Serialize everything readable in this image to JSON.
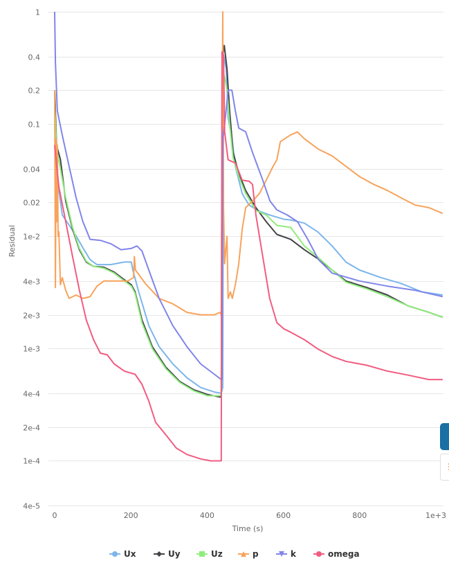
{
  "chart_data": {
    "type": "line",
    "title": "",
    "xlabel": "Time (s)",
    "ylabel": "Residual",
    "xlim": [
      0,
      1000
    ],
    "ylim": [
      4e-05,
      1
    ],
    "yscale": "log",
    "grid": true,
    "legend_position": "bottom",
    "x_ticks": [
      {
        "value": 0,
        "label": "0"
      },
      {
        "value": 200,
        "label": "200"
      },
      {
        "value": 400,
        "label": "400"
      },
      {
        "value": 600,
        "label": "600"
      },
      {
        "value": 800,
        "label": "800"
      },
      {
        "value": 1000,
        "label": "1e+3"
      }
    ],
    "y_ticks": [
      {
        "value": 1,
        "label": "1"
      },
      {
        "value": 0.4,
        "label": "0.4"
      },
      {
        "value": 0.2,
        "label": "0.2"
      },
      {
        "value": 0.1,
        "label": "0.1"
      },
      {
        "value": 0.04,
        "label": "0.04"
      },
      {
        "value": 0.02,
        "label": "0.02"
      },
      {
        "value": 0.01,
        "label": "1e-2"
      },
      {
        "value": 0.004,
        "label": "4e-3"
      },
      {
        "value": 0.002,
        "label": "2e-3"
      },
      {
        "value": 0.001,
        "label": "1e-3"
      },
      {
        "value": 0.0004,
        "label": "4e-4"
      },
      {
        "value": 0.0002,
        "label": "2e-4"
      },
      {
        "value": 0.0001,
        "label": "1e-4"
      },
      {
        "value": 4e-05,
        "label": "4e-5"
      }
    ],
    "series": [
      {
        "name": "Ux",
        "color": "#7cb5ec",
        "marker": "circle",
        "points": [
          [
            0,
            0.2
          ],
          [
            5,
            0.0365
          ],
          [
            20,
            0.0155
          ],
          [
            38,
            0.0126
          ],
          [
            56,
            0.0101
          ],
          [
            74,
            0.0079
          ],
          [
            93,
            0.0062
          ],
          [
            111,
            0.0056
          ],
          [
            147,
            0.0056
          ],
          [
            183,
            0.0059
          ],
          [
            201,
            0.0059
          ],
          [
            205,
            0.005
          ],
          [
            220,
            0.00325
          ],
          [
            247,
            0.0016
          ],
          [
            274,
            0.00104
          ],
          [
            310,
            0.00073
          ],
          [
            347,
            0.00055
          ],
          [
            383,
            0.00045
          ],
          [
            419,
            0.00041
          ],
          [
            437,
            0.0004
          ],
          [
            441,
            0.00045
          ],
          [
            443,
            0.41
          ],
          [
            450,
            0.31
          ],
          [
            455,
            0.114
          ],
          [
            465,
            0.074
          ],
          [
            474,
            0.042
          ],
          [
            492,
            0.024
          ],
          [
            510,
            0.019
          ],
          [
            537,
            0.0167
          ],
          [
            564,
            0.0155
          ],
          [
            601,
            0.0142
          ],
          [
            619,
            0.014
          ],
          [
            655,
            0.0131
          ],
          [
            691,
            0.0109
          ],
          [
            728,
            0.0082
          ],
          [
            764,
            0.0059
          ],
          [
            800,
            0.005
          ],
          [
            855,
            0.0043
          ],
          [
            909,
            0.0038
          ],
          [
            964,
            0.0032
          ],
          [
            1018,
            0.003
          ]
        ]
      },
      {
        "name": "Uy",
        "color": "#434348",
        "marker": "diamond",
        "points": [
          [
            0,
            0.2
          ],
          [
            5,
            0.0645
          ],
          [
            15,
            0.0485
          ],
          [
            29,
            0.0206
          ],
          [
            47,
            0.0116
          ],
          [
            65,
            0.0076
          ],
          [
            83,
            0.0059
          ],
          [
            102,
            0.0054
          ],
          [
            129,
            0.0053
          ],
          [
            156,
            0.0048
          ],
          [
            183,
            0.0041
          ],
          [
            201,
            0.0037
          ],
          [
            211,
            0.0032
          ],
          [
            229,
            0.0018
          ],
          [
            256,
            0.00104
          ],
          [
            292,
            0.00068
          ],
          [
            328,
            0.00051
          ],
          [
            365,
            0.00043
          ],
          [
            401,
            0.00039
          ],
          [
            434,
            0.00037
          ],
          [
            437,
            0.00039
          ],
          [
            441,
            0.41
          ],
          [
            445,
            0.5
          ],
          [
            452,
            0.31
          ],
          [
            459,
            0.131
          ],
          [
            468,
            0.056
          ],
          [
            483,
            0.0365
          ],
          [
            501,
            0.0256
          ],
          [
            528,
            0.018
          ],
          [
            555,
            0.0135
          ],
          [
            583,
            0.0104
          ],
          [
            619,
            0.0094
          ],
          [
            655,
            0.0076
          ],
          [
            691,
            0.0063
          ],
          [
            728,
            0.005
          ],
          [
            764,
            0.004
          ],
          [
            819,
            0.0035
          ],
          [
            873,
            0.003
          ],
          [
            927,
            0.0024
          ],
          [
            982,
            0.0021
          ],
          [
            1018,
            0.0019
          ]
        ]
      },
      {
        "name": "Uz",
        "color": "#90ed7d",
        "marker": "square",
        "points": [
          [
            0,
            0.15
          ],
          [
            5,
            0.06
          ],
          [
            15,
            0.04
          ],
          [
            29,
            0.022
          ],
          [
            47,
            0.012
          ],
          [
            65,
            0.0078
          ],
          [
            83,
            0.006
          ],
          [
            102,
            0.0054
          ],
          [
            129,
            0.0052
          ],
          [
            156,
            0.0047
          ],
          [
            183,
            0.004
          ],
          [
            201,
            0.0036
          ],
          [
            211,
            0.0031
          ],
          [
            229,
            0.0017
          ],
          [
            256,
            0.001
          ],
          [
            292,
            0.00066
          ],
          [
            328,
            0.0005
          ],
          [
            365,
            0.00042
          ],
          [
            401,
            0.00038
          ],
          [
            434,
            0.00038
          ],
          [
            437,
            0.0004
          ],
          [
            441,
            0.3
          ],
          [
            447,
            0.25
          ],
          [
            452,
            0.2
          ],
          [
            459,
            0.1
          ],
          [
            468,
            0.05
          ],
          [
            483,
            0.034
          ],
          [
            501,
            0.024
          ],
          [
            528,
            0.017
          ],
          [
            555,
            0.0155
          ],
          [
            583,
            0.0125
          ],
          [
            619,
            0.012
          ],
          [
            655,
            0.0082
          ],
          [
            691,
            0.0065
          ],
          [
            728,
            0.005
          ],
          [
            764,
            0.0039
          ],
          [
            819,
            0.0034
          ],
          [
            873,
            0.0029
          ],
          [
            927,
            0.0024
          ],
          [
            982,
            0.0021
          ],
          [
            1018,
            0.0019
          ]
        ]
      },
      {
        "name": "p",
        "color": "#f7a35c",
        "marker": "triangle",
        "points": [
          [
            0,
            0.2
          ],
          [
            2,
            0.0035
          ],
          [
            4,
            0.074
          ],
          [
            5,
            0.0135
          ],
          [
            7,
            0.065
          ],
          [
            9,
            0.01
          ],
          [
            11,
            0.011
          ],
          [
            15,
            0.0037
          ],
          [
            20,
            0.0043
          ],
          [
            29,
            0.0033
          ],
          [
            38,
            0.0028
          ],
          [
            56,
            0.003
          ],
          [
            74,
            0.0028
          ],
          [
            93,
            0.0029
          ],
          [
            111,
            0.0036
          ],
          [
            129,
            0.004
          ],
          [
            165,
            0.004
          ],
          [
            192,
            0.004
          ],
          [
            207,
            0.0043
          ],
          [
            209,
            0.0066
          ],
          [
            212,
            0.005
          ],
          [
            220,
            0.0046
          ],
          [
            238,
            0.0038
          ],
          [
            274,
            0.0028
          ],
          [
            310,
            0.0025
          ],
          [
            347,
            0.0021
          ],
          [
            383,
            0.002
          ],
          [
            419,
            0.002
          ],
          [
            434,
            0.0021
          ],
          [
            437,
            0.002
          ],
          [
            441,
            1
          ],
          [
            443,
            0.018
          ],
          [
            446,
            0.0057
          ],
          [
            452,
            0.01
          ],
          [
            455,
            0.0028
          ],
          [
            461,
            0.0032
          ],
          [
            466,
            0.0028
          ],
          [
            474,
            0.0037
          ],
          [
            483,
            0.0057
          ],
          [
            492,
            0.0116
          ],
          [
            501,
            0.018
          ],
          [
            519,
            0.0206
          ],
          [
            537,
            0.024
          ],
          [
            555,
            0.0316
          ],
          [
            573,
            0.042
          ],
          [
            583,
            0.048
          ],
          [
            592,
            0.0696
          ],
          [
            619,
            0.08
          ],
          [
            637,
            0.085
          ],
          [
            655,
            0.074
          ],
          [
            691,
            0.06
          ],
          [
            728,
            0.052
          ],
          [
            764,
            0.042
          ],
          [
            800,
            0.034
          ],
          [
            837,
            0.029
          ],
          [
            873,
            0.0256
          ],
          [
            909,
            0.022
          ],
          [
            946,
            0.019
          ],
          [
            982,
            0.018
          ],
          [
            1018,
            0.016
          ]
        ]
      },
      {
        "name": "k",
        "color": "#8085e9",
        "marker": "triangle-down",
        "points": [
          [
            0,
            1
          ],
          [
            2,
            0.354
          ],
          [
            7,
            0.131
          ],
          [
            20,
            0.0797
          ],
          [
            38,
            0.042
          ],
          [
            56,
            0.0222
          ],
          [
            74,
            0.0135
          ],
          [
            93,
            0.0094
          ],
          [
            120,
            0.0092
          ],
          [
            147,
            0.0086
          ],
          [
            174,
            0.0076
          ],
          [
            201,
            0.0078
          ],
          [
            216,
            0.0082
          ],
          [
            229,
            0.0074
          ],
          [
            247,
            0.005
          ],
          [
            274,
            0.0028
          ],
          [
            310,
            0.0016
          ],
          [
            347,
            0.00104
          ],
          [
            383,
            0.00073
          ],
          [
            419,
            0.00059
          ],
          [
            437,
            0.00053
          ],
          [
            439,
            0.00053
          ],
          [
            441,
            0.0742
          ],
          [
            446,
            0.0986
          ],
          [
            455,
            0.2
          ],
          [
            465,
            0.2
          ],
          [
            474,
            0.131
          ],
          [
            483,
            0.092
          ],
          [
            501,
            0.0855
          ],
          [
            519,
            0.0558
          ],
          [
            546,
            0.0316
          ],
          [
            565,
            0.0206
          ],
          [
            583,
            0.0172
          ],
          [
            610,
            0.0155
          ],
          [
            637,
            0.0135
          ],
          [
            664,
            0.0094
          ],
          [
            692,
            0.0062
          ],
          [
            728,
            0.0047
          ],
          [
            800,
            0.004
          ],
          [
            873,
            0.0036
          ],
          [
            946,
            0.0033
          ],
          [
            1018,
            0.0029
          ]
        ]
      },
      {
        "name": "omega",
        "color": "#f15c80",
        "marker": "circle",
        "points": [
          [
            0,
            0.065
          ],
          [
            11,
            0.0275
          ],
          [
            29,
            0.0135
          ],
          [
            47,
            0.0066
          ],
          [
            65,
            0.0033
          ],
          [
            83,
            0.0018
          ],
          [
            102,
            0.0012
          ],
          [
            120,
            0.00091
          ],
          [
            138,
            0.00088
          ],
          [
            156,
            0.00073
          ],
          [
            183,
            0.00063
          ],
          [
            211,
            0.00059
          ],
          [
            229,
            0.00048
          ],
          [
            247,
            0.00034
          ],
          [
            265,
            0.00022
          ],
          [
            292,
            0.00017
          ],
          [
            319,
            0.00013
          ],
          [
            347,
            0.000114
          ],
          [
            383,
            0.000104
          ],
          [
            410,
            0.0001
          ],
          [
            437,
            0.0001
          ],
          [
            439,
            0.44
          ],
          [
            443,
            0.41
          ],
          [
            446,
            0.0855
          ],
          [
            455,
            0.048
          ],
          [
            474,
            0.045
          ],
          [
            492,
            0.0316
          ],
          [
            510,
            0.031
          ],
          [
            519,
            0.029
          ],
          [
            528,
            0.0155
          ],
          [
            546,
            0.0066
          ],
          [
            564,
            0.0028
          ],
          [
            583,
            0.0017
          ],
          [
            601,
            0.0015
          ],
          [
            619,
            0.0014
          ],
          [
            655,
            0.0012
          ],
          [
            691,
            0.00099
          ],
          [
            728,
            0.00085
          ],
          [
            764,
            0.00077
          ],
          [
            819,
            0.00071
          ],
          [
            873,
            0.00063
          ],
          [
            927,
            0.00058
          ],
          [
            982,
            0.00053
          ],
          [
            1018,
            0.00053
          ]
        ]
      }
    ]
  }
}
